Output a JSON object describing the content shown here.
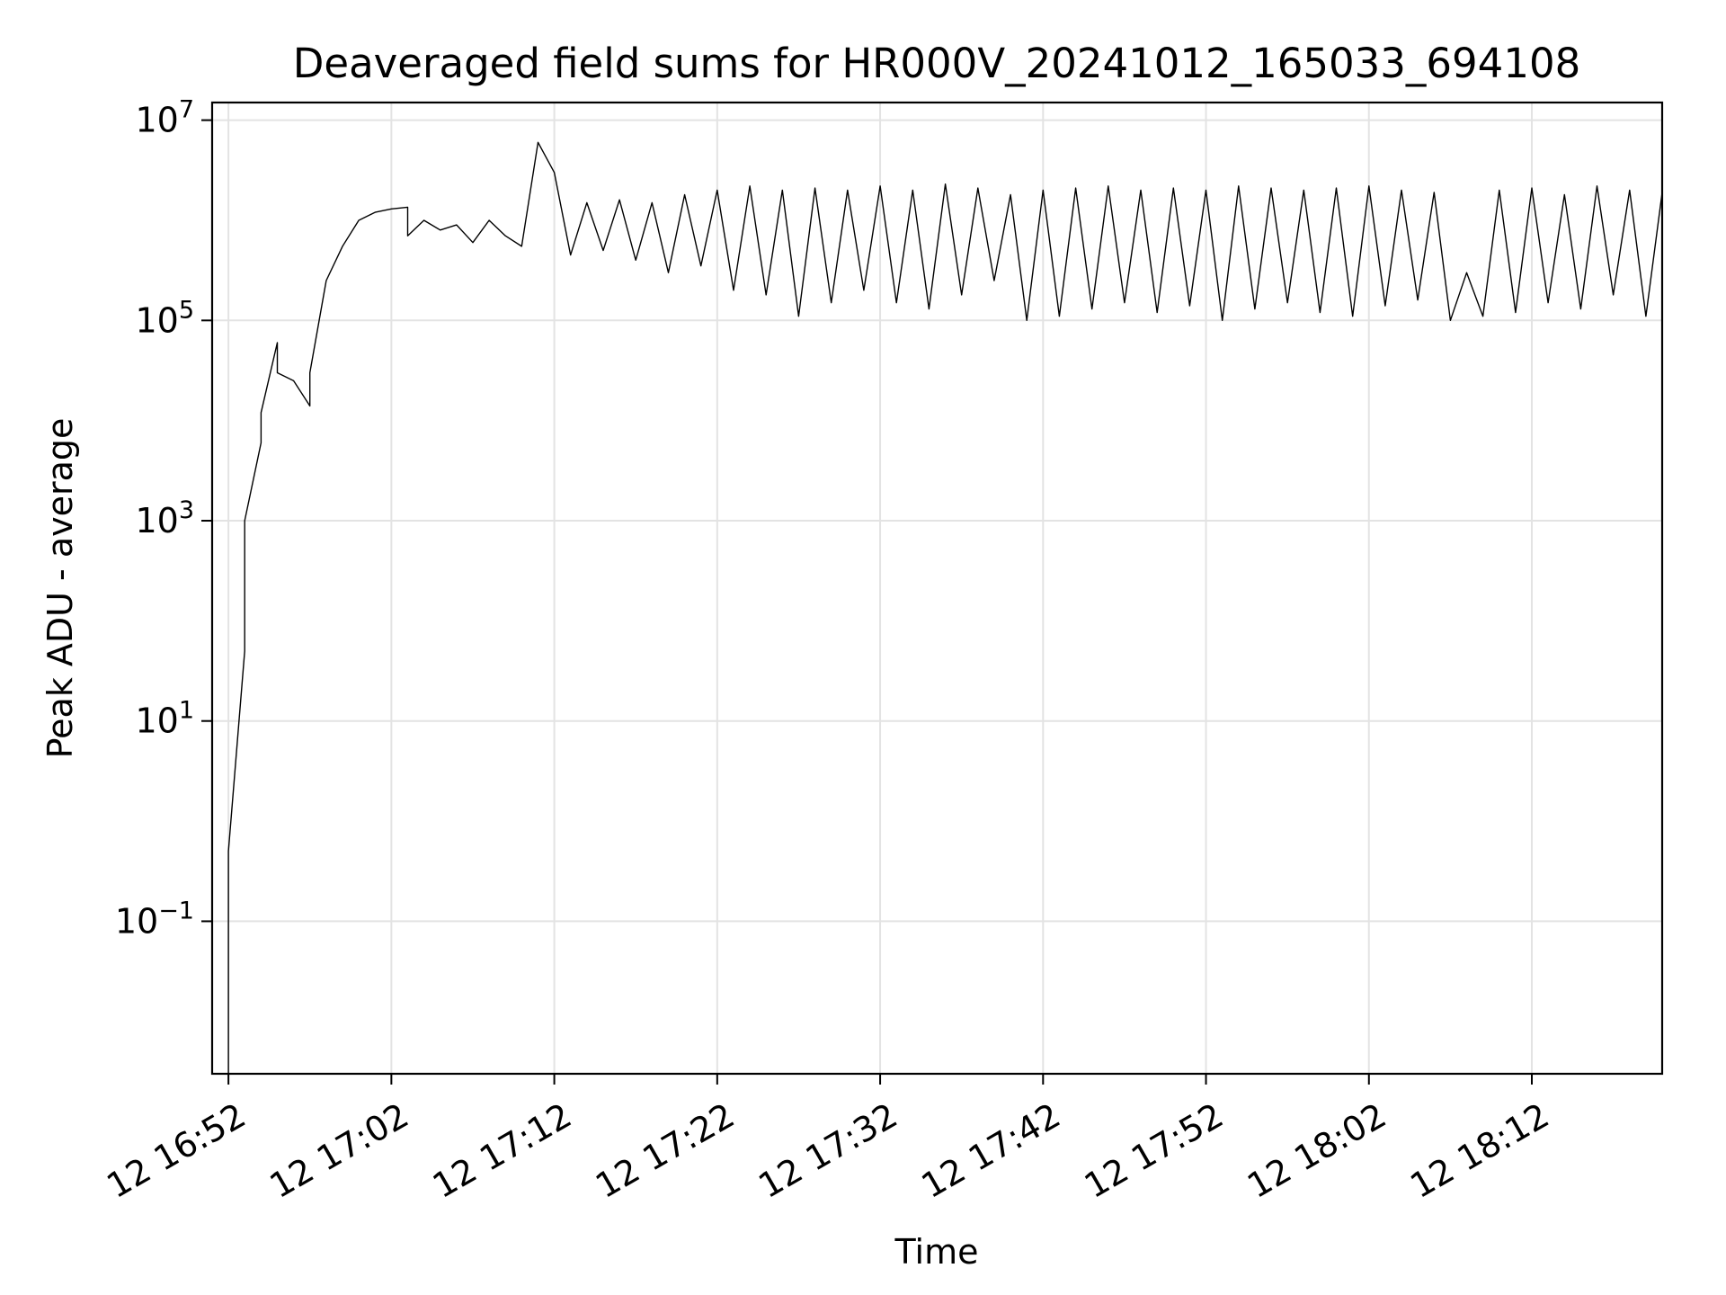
{
  "chart_data": {
    "type": "line",
    "title": "Deaveraged field sums for HR000V_20241012_165033_694108",
    "xlabel": "Time",
    "ylabel": "Peak ADU - average",
    "yscale": "log",
    "ylim": [
      0.003,
      15000000
    ],
    "xlim": [
      "12 16:51",
      "12 18:20"
    ],
    "x_ticks": [
      "12 16:52",
      "12 17:02",
      "12 17:12",
      "12 17:22",
      "12 17:32",
      "12 17:42",
      "12 17:52",
      "12 18:02",
      "12 18:12"
    ],
    "y_ticks": [
      {
        "base": "10",
        "exp": "7",
        "value": 10000000
      },
      {
        "base": "10",
        "exp": "5",
        "value": 100000
      },
      {
        "base": "10",
        "exp": "3",
        "value": 1000
      },
      {
        "base": "10",
        "exp": "1",
        "value": 10
      },
      {
        "base": "10",
        "exp": "−1",
        "value": 0.1
      }
    ],
    "grid": true,
    "colors": {
      "line": "#000000",
      "grid": "#e3e3e3",
      "axes": "#000000"
    },
    "series": [
      {
        "points": [
          [
            "12 16:52",
            0.003
          ],
          [
            "12 16:52",
            0.5
          ],
          [
            "12 16:53",
            50
          ],
          [
            "12 16:53",
            1000
          ],
          [
            "12 16:54",
            6000
          ],
          [
            "12 16:54",
            12000
          ],
          [
            "12 16:55",
            60000
          ],
          [
            "12 16:55",
            30000
          ],
          [
            "12 16:56",
            25000
          ],
          [
            "12 16:57",
            14000
          ],
          [
            "12 16:57",
            30000
          ],
          [
            "12 16:58",
            250000
          ],
          [
            "12 16:59",
            550000
          ],
          [
            "12 17:00",
            1000000
          ],
          [
            "12 17:01",
            1200000
          ],
          [
            "12 17:02",
            1300000
          ],
          [
            "12 17:03",
            1350000
          ],
          [
            "12 17:03",
            700000
          ],
          [
            "12 17:04",
            1000000
          ],
          [
            "12 17:05",
            800000
          ],
          [
            "12 17:06",
            900000
          ],
          [
            "12 17:07",
            600000
          ],
          [
            "12 17:08",
            1000000
          ],
          [
            "12 17:09",
            700000
          ],
          [
            "12 17:10",
            550000
          ],
          [
            "12 17:11",
            6000000
          ],
          [
            "12 17:12",
            3000000
          ],
          [
            "12 17:13",
            450000
          ],
          [
            "12 17:14",
            1500000
          ],
          [
            "12 17:15",
            500000
          ],
          [
            "12 17:16",
            1600000
          ],
          [
            "12 17:17",
            400000
          ],
          [
            "12 17:18",
            1500000
          ],
          [
            "12 17:19",
            300000
          ],
          [
            "12 17:20",
            1800000
          ],
          [
            "12 17:21",
            350000
          ],
          [
            "12 17:22",
            2000000
          ],
          [
            "12 17:23",
            200000
          ],
          [
            "12 17:24",
            2200000
          ],
          [
            "12 17:25",
            180000
          ],
          [
            "12 17:26",
            2000000
          ],
          [
            "12 17:27",
            110000
          ],
          [
            "12 17:28",
            2100000
          ],
          [
            "12 17:29",
            150000
          ],
          [
            "12 17:30",
            2000000
          ],
          [
            "12 17:31",
            200000
          ],
          [
            "12 17:32",
            2200000
          ],
          [
            "12 17:33",
            150000
          ],
          [
            "12 17:34",
            2000000
          ],
          [
            "12 17:35",
            130000
          ],
          [
            "12 17:36",
            2300000
          ],
          [
            "12 17:37",
            180000
          ],
          [
            "12 17:38",
            2100000
          ],
          [
            "12 17:39",
            250000
          ],
          [
            "12 17:40",
            1800000
          ],
          [
            "12 17:41",
            100000
          ],
          [
            "12 17:42",
            2000000
          ],
          [
            "12 17:43",
            110000
          ],
          [
            "12 17:44",
            2100000
          ],
          [
            "12 17:45",
            130000
          ],
          [
            "12 17:46",
            2200000
          ],
          [
            "12 17:47",
            150000
          ],
          [
            "12 17:48",
            2000000
          ],
          [
            "12 17:49",
            120000
          ],
          [
            "12 17:50",
            2100000
          ],
          [
            "12 17:51",
            140000
          ],
          [
            "12 17:52",
            2000000
          ],
          [
            "12 17:53",
            100000
          ],
          [
            "12 17:54",
            2200000
          ],
          [
            "12 17:55",
            130000
          ],
          [
            "12 17:56",
            2100000
          ],
          [
            "12 17:57",
            150000
          ],
          [
            "12 17:58",
            2000000
          ],
          [
            "12 17:59",
            120000
          ],
          [
            "12 18:00",
            2100000
          ],
          [
            "12 18:01",
            110000
          ],
          [
            "12 18:02",
            2200000
          ],
          [
            "12 18:03",
            140000
          ],
          [
            "12 18:04",
            2000000
          ],
          [
            "12 18:05",
            160000
          ],
          [
            "12 18:06",
            1900000
          ],
          [
            "12 18:07",
            100000
          ],
          [
            "12 18:08",
            300000
          ],
          [
            "12 18:09",
            110000
          ],
          [
            "12 18:10",
            2000000
          ],
          [
            "12 18:11",
            120000
          ],
          [
            "12 18:12",
            2100000
          ],
          [
            "12 18:13",
            150000
          ],
          [
            "12 18:14",
            1800000
          ],
          [
            "12 18:15",
            130000
          ],
          [
            "12 18:16",
            2200000
          ],
          [
            "12 18:17",
            180000
          ],
          [
            "12 18:18",
            2000000
          ],
          [
            "12 18:19",
            110000
          ],
          [
            "12 18:20",
            1900000
          ]
        ]
      }
    ]
  }
}
